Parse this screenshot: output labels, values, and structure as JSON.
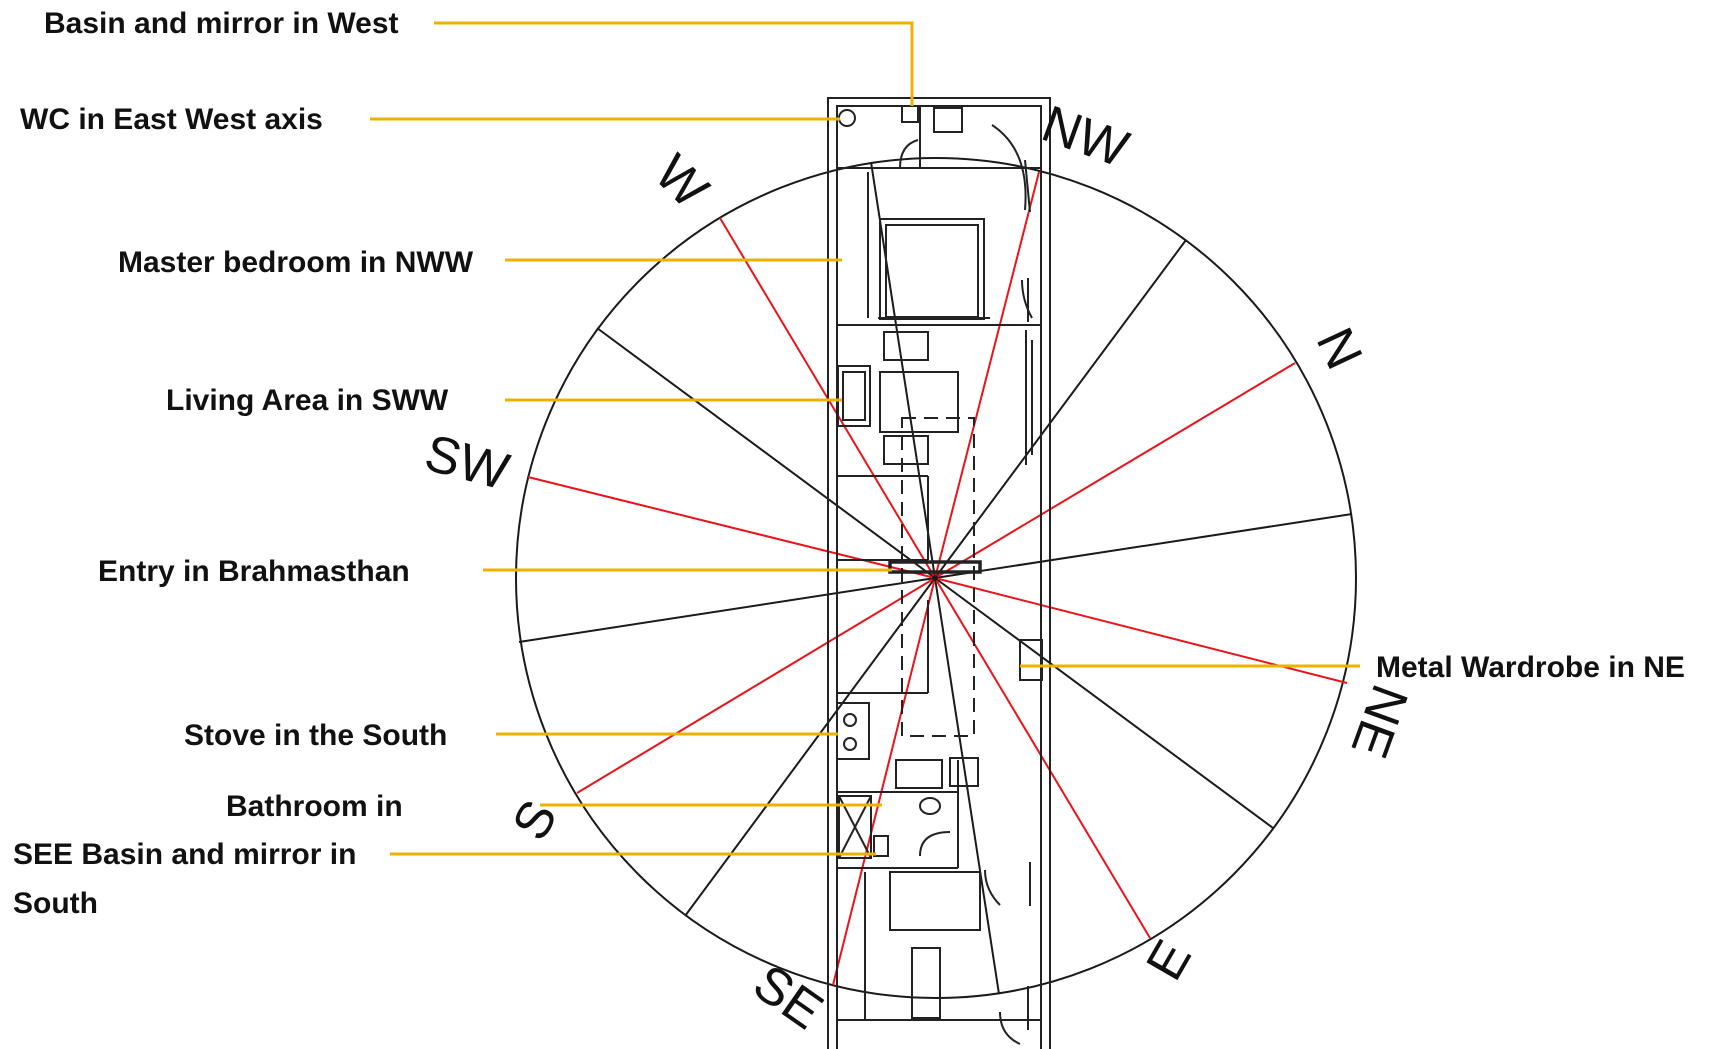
{
  "colors": {
    "leader": "#f0b000",
    "ray_red": "#e8141a",
    "ray_black": "#1a1a1a",
    "circle": "#1a1a1a"
  },
  "labels": {
    "basin_west": "Basin and mirror in West",
    "wc": "WC in East West axis",
    "master_bedroom": "Master bedroom in NWW",
    "living_area": "Living Area in SWW",
    "entry": "Entry in Brahmasthan",
    "stove": "Stove in the South",
    "bathroom": "Bathroom in",
    "see_basin": "SEE  Basin and mirror in",
    "south_word": "South",
    "metal_wardrobe": "Metal Wardrobe in NE"
  },
  "directions": {
    "nw": "NW",
    "w": "W",
    "n": "N",
    "sw": "SW",
    "ne": "NE",
    "s": "S",
    "e": "E",
    "se": "SE"
  }
}
